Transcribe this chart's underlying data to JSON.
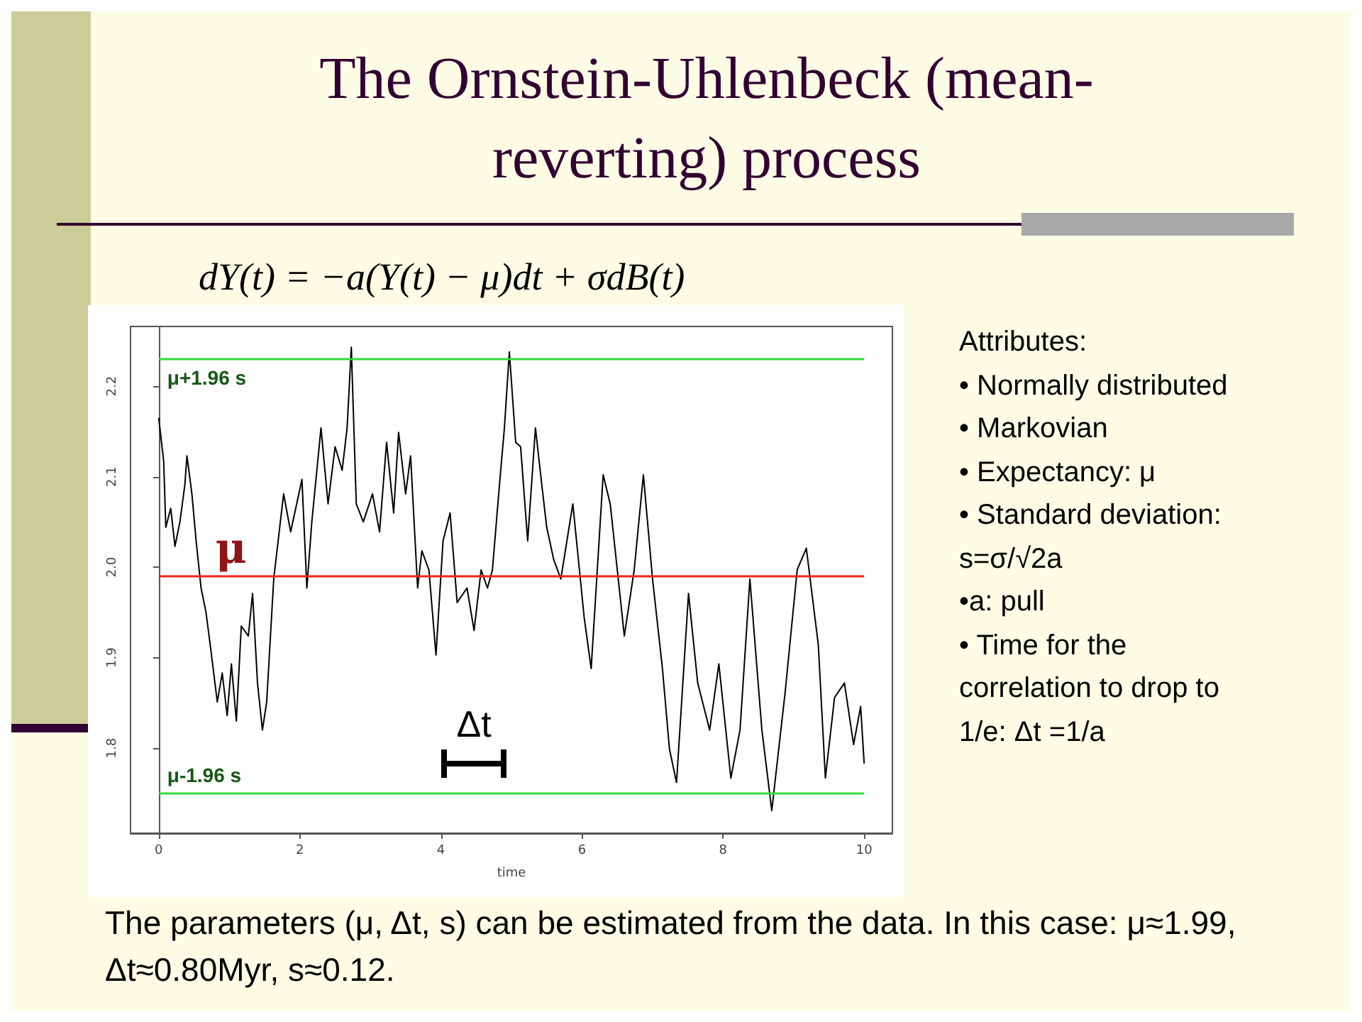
{
  "chart_data": {
    "type": "line",
    "title": "The Ornstein-Uhlenbeck (mean-reverting) process",
    "xlabel": "time",
    "x": [
      0,
      0.07,
      0.1,
      0.17,
      0.23,
      0.3,
      0.37,
      0.4,
      0.47,
      0.53,
      0.6,
      0.67,
      0.73,
      0.83,
      0.9,
      0.97,
      1.03,
      1.1,
      1.17,
      1.27,
      1.33,
      1.4,
      1.47,
      1.53,
      1.63,
      1.77,
      1.87,
      2.03,
      2.1,
      2.17,
      2.3,
      2.4,
      2.5,
      2.6,
      2.67,
      2.73,
      2.8,
      2.9,
      3.03,
      3.13,
      3.23,
      3.33,
      3.4,
      3.5,
      3.57,
      3.67,
      3.73,
      3.83,
      3.93,
      4.03,
      4.13,
      4.23,
      4.37,
      4.47,
      4.57,
      4.66,
      4.73,
      4.83,
      4.9,
      4.97,
      5.06,
      5.13,
      5.23,
      5.34,
      5.43,
      5.5,
      5.6,
      5.7,
      5.87,
      6.03,
      6.13,
      6.3,
      6.4,
      6.5,
      6.6,
      6.74,
      6.87,
      7.0,
      7.14,
      7.24,
      7.34,
      7.51,
      7.64,
      7.81,
      7.94,
      8.11,
      8.24,
      8.38,
      8.55,
      8.69,
      8.88,
      9.05,
      9.18,
      9.35,
      9.45,
      9.58,
      9.72,
      9.85,
      9.95,
      10
    ],
    "series": [
      {
        "color": "#000000",
        "values": [
          2.165,
          2.117,
          2.044,
          2.065,
          2.023,
          2.05,
          2.091,
          2.123,
          2.081,
          2.029,
          1.977,
          1.95,
          1.914,
          1.851,
          1.883,
          1.836,
          1.893,
          1.83,
          1.935,
          1.924,
          1.971,
          1.872,
          1.82,
          1.851,
          1.987,
          2.081,
          2.039,
          2.097,
          1.977,
          2.05,
          2.154,
          2.07,
          2.133,
          2.107,
          2.154,
          2.243,
          2.07,
          2.05,
          2.081,
          2.039,
          2.138,
          2.06,
          2.149,
          2.081,
          2.123,
          1.977,
          2.018,
          1.997,
          1.903,
          2.029,
          2.06,
          1.961,
          1.977,
          1.93,
          1.997,
          1.977,
          1.997,
          2.091,
          2.154,
          2.238,
          2.138,
          2.133,
          2.029,
          2.154,
          2.091,
          2.044,
          2.008,
          1.987,
          2.07,
          1.945,
          1.888,
          2.102,
          2.07,
          1.997,
          1.924,
          1.997,
          2.102,
          1.987,
          1.888,
          1.799,
          1.762,
          1.971,
          1.872,
          1.82,
          1.893,
          1.767,
          1.82,
          1.987,
          1.82,
          1.731,
          1.862,
          1.997,
          2.021,
          1.914,
          1.767,
          1.856,
          1.872,
          1.804,
          1.846,
          1.783
        ]
      }
    ],
    "xlim": [
      -0.4,
      10.4
    ],
    "xticks": [
      0,
      2,
      4,
      6,
      8,
      10
    ],
    "ylim": [
      1.706,
      2.266
    ],
    "yticks": [
      1.8,
      1.9,
      {
        "value": 2,
        "label": "2.0"
      },
      2.1,
      2.2
    ],
    "ref_lines": [
      {
        "axis": "y",
        "value": 2.23,
        "label": "μ+1.96 s",
        "color": "#33dd33"
      },
      {
        "axis": "y",
        "value": 1.99,
        "label": "μ",
        "color": "#ee2222"
      },
      {
        "axis": "y",
        "value": 1.75,
        "label": "μ-1.96 s",
        "color": "#33dd33"
      }
    ],
    "annotations": [
      "dY(t) = −a(Y(t) − μ)dt + σdB(t)",
      "Attributes:\n• Normally distributed\n• Markovian\n• Expectancy: μ\n• Standard deviation:\ns=σ/√2a\n•a: pull\n• Time for the\ncorrelation to drop to\n1/e: Δt =1/a",
      "The parameters (μ, Δt, s) can be estimated from the data. In this case: μ≈1.99, Δt≈0.80Myr, s≈0.12.",
      "Δt"
    ]
  }
}
